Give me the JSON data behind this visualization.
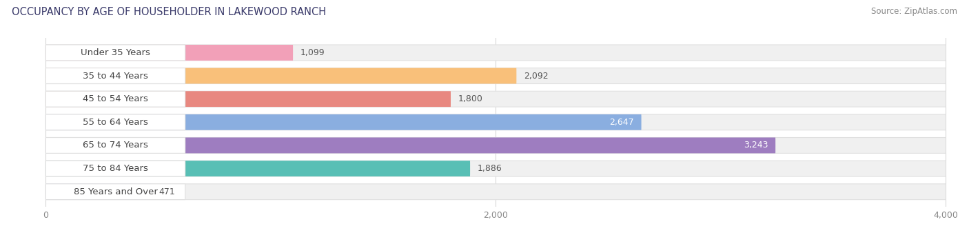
{
  "title": "OCCUPANCY BY AGE OF HOUSEHOLDER IN LAKEWOOD RANCH",
  "source": "Source: ZipAtlas.com",
  "categories": [
    "Under 35 Years",
    "35 to 44 Years",
    "45 to 54 Years",
    "55 to 64 Years",
    "65 to 74 Years",
    "75 to 84 Years",
    "85 Years and Over"
  ],
  "values": [
    1099,
    2092,
    1800,
    2647,
    3243,
    1886,
    471
  ],
  "bar_colors": [
    "#F2A0B8",
    "#F9C07A",
    "#E88880",
    "#8AAEE0",
    "#9E7DC0",
    "#58BFB5",
    "#C0BCEC"
  ],
  "bar_bg_color": "#F0F0F0",
  "bar_border_color": "#E0E0E0",
  "xlim_max": 4000,
  "xticks": [
    0,
    2000,
    4000
  ],
  "background_color": "#FFFFFF",
  "title_fontsize": 10.5,
  "source_fontsize": 8.5,
  "tick_fontsize": 9,
  "label_fontsize": 9.5,
  "value_fontsize": 9,
  "bar_height": 0.68,
  "value_inside_indices": [
    3,
    4
  ],
  "value_inside_color": "#FFFFFF",
  "value_outside_color": "#555555",
  "label_text_color": "#444444",
  "title_color": "#3A3A6A",
  "source_color": "#888888",
  "tick_color": "#888888",
  "grid_color": "#D8D8D8"
}
